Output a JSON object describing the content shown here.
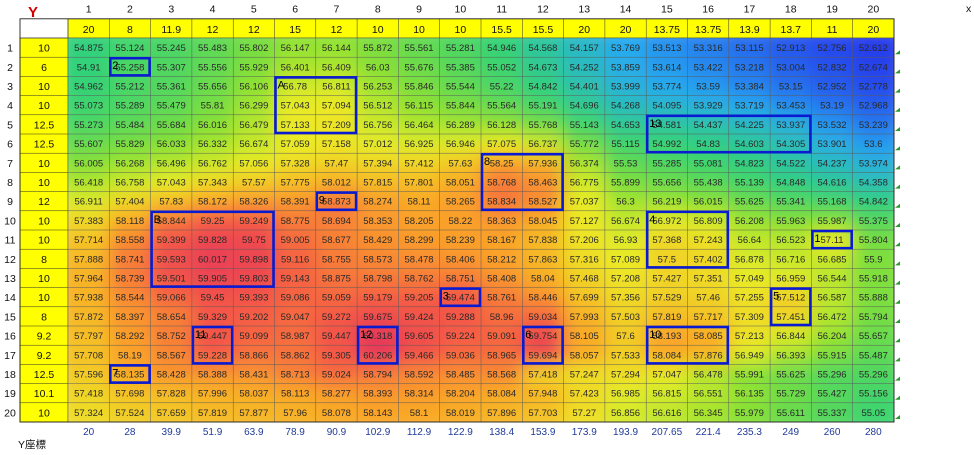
{
  "chart_data": {
    "type": "heatmap",
    "axis_letter": "Y",
    "x_edge_letter": "x",
    "y_unit_label": "Y座標",
    "col_index": [
      1,
      2,
      3,
      4,
      5,
      6,
      7,
      8,
      9,
      10,
      11,
      12,
      13,
      14,
      15,
      16,
      17,
      18,
      19,
      20
    ],
    "col_widths": [
      "20",
      "8",
      "11.9",
      "12",
      "12",
      "15",
      "12",
      "10",
      "10",
      "10",
      "15.5",
      "15.5",
      "20",
      "20",
      "13.75",
      "13.75",
      "13.9",
      "13.7",
      "11",
      "20"
    ],
    "row_index": [
      1,
      2,
      3,
      4,
      5,
      6,
      7,
      8,
      9,
      10,
      11,
      12,
      13,
      14,
      15,
      16,
      17,
      18,
      19,
      20
    ],
    "row_heights": [
      "10",
      "6",
      "10",
      "10",
      "12.5",
      "12.5",
      "10",
      "10",
      "12",
      "10",
      "10",
      "8",
      "10",
      "10",
      "8",
      "9.2",
      "9.2",
      "12.5",
      "10.1",
      "10"
    ],
    "x_coords": [
      "20",
      "28",
      "39.9",
      "51.9",
      "63.9",
      "78.9",
      "90.9",
      "102.9",
      "112.9",
      "122.9",
      "138.4",
      "153.9",
      "173.9",
      "193.9",
      "207.65",
      "221.4",
      "235.3",
      "249",
      "260",
      "280"
    ],
    "values": [
      [
        54.875,
        55.124,
        55.245,
        55.483,
        55.802,
        56.147,
        56.144,
        55.872,
        55.561,
        55.281,
        54.946,
        54.568,
        54.157,
        53.769,
        53.513,
        53.316,
        53.115,
        52.913,
        52.756,
        52.612
      ],
      [
        54.91,
        55.258,
        55.307,
        55.556,
        55.929,
        56.401,
        56.409,
        56.03,
        55.676,
        55.385,
        55.052,
        54.673,
        54.252,
        53.859,
        53.614,
        53.422,
        53.218,
        53.004,
        52.832,
        52.674
      ],
      [
        54.962,
        55.212,
        55.361,
        55.656,
        56.106,
        56.78,
        56.811,
        56.253,
        55.846,
        55.544,
        55.22,
        54.842,
        54.401,
        53.999,
        53.774,
        53.59,
        53.384,
        53.15,
        52.952,
        52.778
      ],
      [
        55.073,
        55.289,
        55.479,
        55.81,
        56.299,
        57.043,
        57.094,
        56.512,
        56.115,
        55.844,
        55.564,
        55.191,
        54.696,
        54.268,
        54.095,
        53.929,
        53.719,
        53.453,
        53.19,
        52.968
      ],
      [
        55.273,
        55.484,
        55.684,
        56.016,
        56.479,
        57.133,
        57.209,
        56.756,
        56.464,
        56.289,
        56.128,
        55.768,
        55.143,
        54.653,
        54.581,
        54.437,
        54.225,
        53.937,
        53.532,
        53.239
      ],
      [
        55.607,
        55.829,
        56.033,
        56.332,
        56.674,
        57.059,
        57.158,
        57.012,
        56.925,
        56.946,
        57.075,
        56.737,
        55.772,
        55.115,
        54.992,
        54.83,
        54.603,
        54.305,
        53.901,
        53.6
      ],
      [
        56.005,
        56.268,
        56.496,
        56.762,
        57.056,
        57.328,
        57.47,
        57.394,
        57.412,
        57.63,
        58.25,
        57.936,
        56.374,
        55.53,
        55.285,
        55.081,
        54.823,
        54.522,
        54.237,
        53.974
      ],
      [
        56.418,
        56.758,
        57.043,
        57.343,
        57.57,
        57.775,
        58.012,
        57.815,
        57.801,
        58.051,
        58.768,
        58.463,
        56.775,
        55.899,
        55.656,
        55.438,
        55.139,
        54.848,
        54.616,
        54.358
      ],
      [
        56.911,
        57.404,
        57.83,
        58.172,
        58.326,
        58.391,
        58.873,
        58.274,
        58.11,
        58.265,
        58.834,
        58.527,
        57.037,
        56.3,
        56.219,
        56.015,
        55.625,
        55.341,
        55.168,
        54.842
      ],
      [
        57.383,
        58.118,
        58.844,
        59.25,
        59.249,
        58.775,
        58.694,
        58.353,
        58.205,
        58.22,
        58.363,
        58.045,
        57.127,
        56.674,
        56.972,
        56.809,
        56.208,
        55.963,
        55.987,
        55.375
      ],
      [
        57.714,
        58.558,
        59.399,
        59.828,
        59.75,
        59.005,
        58.677,
        58.429,
        58.299,
        58.239,
        58.167,
        57.838,
        57.206,
        56.93,
        57.368,
        57.243,
        56.64,
        56.523,
        57.11,
        55.804
      ],
      [
        57.888,
        58.741,
        59.593,
        60.017,
        59.898,
        59.116,
        58.755,
        58.573,
        58.478,
        58.406,
        58.212,
        57.863,
        57.316,
        57.089,
        57.5,
        57.402,
        56.878,
        56.716,
        56.685,
        55.9
      ],
      [
        57.964,
        58.739,
        59.501,
        59.905,
        59.803,
        59.143,
        58.875,
        58.798,
        58.762,
        58.751,
        58.408,
        58.04,
        57.468,
        57.208,
        57.427,
        57.351,
        57.049,
        56.959,
        56.544,
        55.918
      ],
      [
        57.938,
        58.544,
        59.066,
        59.45,
        59.393,
        59.086,
        59.059,
        59.179,
        59.205,
        59.474,
        58.761,
        58.446,
        57.699,
        57.356,
        57.529,
        57.46,
        57.255,
        57.512,
        56.587,
        55.888
      ],
      [
        57.872,
        58.397,
        58.654,
        59.329,
        59.202,
        59.047,
        59.272,
        59.675,
        59.424,
        59.288,
        58.96,
        59.034,
        57.993,
        57.503,
        57.819,
        57.717,
        57.309,
        57.451,
        56.472,
        55.794
      ],
      [
        57.797,
        58.292,
        58.752,
        59.447,
        59.099,
        58.987,
        59.447,
        60.318,
        59.605,
        59.224,
        59.091,
        59.754,
        58.105,
        57.6,
        58.193,
        58.085,
        57.213,
        56.844,
        56.204,
        55.657
      ],
      [
        57.708,
        58.19,
        58.567,
        59.228,
        58.866,
        58.862,
        59.305,
        60.206,
        59.466,
        59.036,
        58.965,
        59.694,
        58.057,
        57.533,
        58.084,
        57.876,
        56.949,
        56.393,
        55.915,
        55.487
      ],
      [
        57.596,
        58.135,
        58.428,
        58.388,
        58.431,
        58.713,
        59.024,
        58.794,
        58.592,
        58.485,
        58.568,
        57.418,
        57.247,
        57.294,
        57.047,
        56.478,
        55.991,
        55.625,
        55.296,
        55.296
      ],
      [
        57.418,
        57.698,
        57.828,
        57.996,
        58.037,
        58.113,
        58.277,
        58.393,
        58.314,
        58.204,
        58.084,
        57.948,
        57.423,
        56.985,
        56.815,
        56.551,
        56.135,
        55.729,
        55.427,
        55.156
      ],
      [
        57.324,
        57.524,
        57.659,
        57.819,
        57.877,
        57.96,
        58.078,
        58.143,
        58.1,
        58.019,
        57.896,
        57.703,
        57.27,
        56.856,
        56.616,
        56.345,
        55.979,
        55.611,
        55.337,
        55.05
      ]
    ],
    "boxes": [
      {
        "label": "1",
        "col": 19,
        "row": 11,
        "cols": 1,
        "rows": 1
      },
      {
        "label": "2",
        "col": 2,
        "row": 2,
        "cols": 1,
        "rows": 1
      },
      {
        "label": "3",
        "col": 10,
        "row": 14,
        "cols": 1,
        "rows": 1
      },
      {
        "label": "4",
        "col": 15,
        "row": 10,
        "cols": 2,
        "rows": 3
      },
      {
        "label": "5",
        "col": 18,
        "row": 14,
        "cols": 1,
        "rows": 2
      },
      {
        "label": "6",
        "col": 12,
        "row": 16,
        "cols": 1,
        "rows": 2
      },
      {
        "label": "7",
        "col": 2,
        "row": 18,
        "cols": 1,
        "rows": 1
      },
      {
        "label": "8",
        "col": 11,
        "row": 7,
        "cols": 2,
        "rows": 3
      },
      {
        "label": "9",
        "col": 7,
        "row": 9,
        "cols": 1,
        "rows": 1
      },
      {
        "label": "10",
        "col": 15,
        "row": 16,
        "cols": 2,
        "rows": 2
      },
      {
        "label": "11",
        "col": 4,
        "row": 16,
        "cols": 1,
        "rows": 2
      },
      {
        "label": "12",
        "col": 8,
        "row": 16,
        "cols": 1,
        "rows": 2
      },
      {
        "label": "13",
        "col": 15,
        "row": 5,
        "cols": 4,
        "rows": 2
      },
      {
        "label": "A",
        "col": 6,
        "row": 3,
        "cols": 2,
        "rows": 3
      },
      {
        "label": "B",
        "col": 3,
        "row": 10,
        "cols": 3,
        "rows": 4
      }
    ],
    "grid": true,
    "colors": {
      "header_fill": "#ffff00",
      "box_stroke": "#0a1ad0",
      "axis_letter": "#d40000",
      "bottom_text": "#1f3a9a"
    }
  }
}
